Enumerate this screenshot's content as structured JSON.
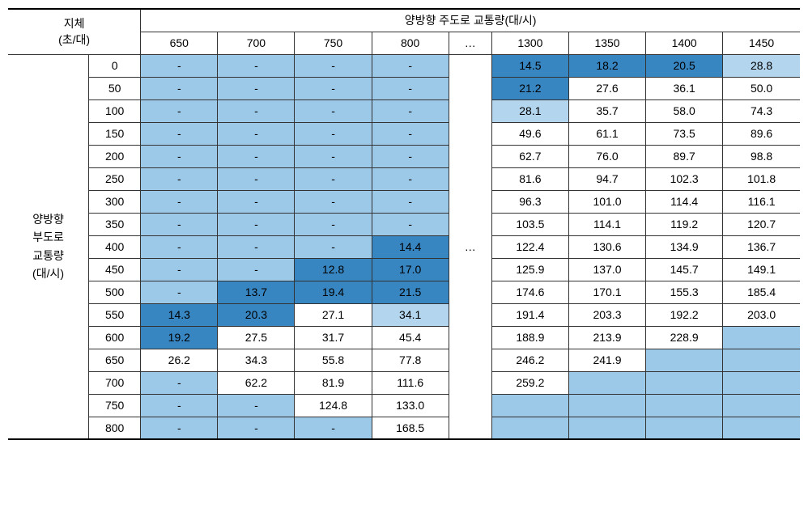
{
  "table": {
    "header": {
      "corner_line1": "지체",
      "corner_line2": "(초/대)",
      "main_col_header": "양방향 주도로 교통량(대/시)",
      "ellipsis": "…",
      "col_headers": [
        "650",
        "700",
        "750",
        "800",
        "1300",
        "1350",
        "1400",
        "1450"
      ]
    },
    "row_header": {
      "line1": "양방향",
      "line2": "부도로",
      "line3": "교통량",
      "line4": "(대/시)"
    },
    "row_labels": [
      "0",
      "50",
      "100",
      "150",
      "200",
      "250",
      "300",
      "350",
      "400",
      "450",
      "500",
      "550",
      "600",
      "650",
      "700",
      "750",
      "800"
    ],
    "colors": {
      "white": "#ffffff",
      "lightest": "#b3d5ee",
      "light": "#9cc9e8",
      "medium": "#7fb9df",
      "dark": "#5ba3d4",
      "darkest": "#3785c1",
      "empty": "#9cc9e8"
    },
    "cells": [
      [
        {
          "v": "-",
          "c": "#9cc9e8"
        },
        {
          "v": "-",
          "c": "#9cc9e8"
        },
        {
          "v": "-",
          "c": "#9cc9e8"
        },
        {
          "v": "-",
          "c": "#9cc9e8"
        },
        {
          "v": "14.5",
          "c": "#3785c1"
        },
        {
          "v": "18.2",
          "c": "#3785c1"
        },
        {
          "v": "20.5",
          "c": "#3785c1"
        },
        {
          "v": "28.8",
          "c": "#b3d5ee"
        }
      ],
      [
        {
          "v": "-",
          "c": "#9cc9e8"
        },
        {
          "v": "-",
          "c": "#9cc9e8"
        },
        {
          "v": "-",
          "c": "#9cc9e8"
        },
        {
          "v": "-",
          "c": "#9cc9e8"
        },
        {
          "v": "21.2",
          "c": "#3785c1"
        },
        {
          "v": "27.6",
          "c": "#ffffff"
        },
        {
          "v": "36.1",
          "c": "#ffffff"
        },
        {
          "v": "50.0",
          "c": "#ffffff"
        }
      ],
      [
        {
          "v": "-",
          "c": "#9cc9e8"
        },
        {
          "v": "-",
          "c": "#9cc9e8"
        },
        {
          "v": "-",
          "c": "#9cc9e8"
        },
        {
          "v": "-",
          "c": "#9cc9e8"
        },
        {
          "v": "28.1",
          "c": "#b3d5ee"
        },
        {
          "v": "35.7",
          "c": "#ffffff"
        },
        {
          "v": "58.0",
          "c": "#ffffff"
        },
        {
          "v": "74.3",
          "c": "#ffffff"
        }
      ],
      [
        {
          "v": "-",
          "c": "#9cc9e8"
        },
        {
          "v": "-",
          "c": "#9cc9e8"
        },
        {
          "v": "-",
          "c": "#9cc9e8"
        },
        {
          "v": "-",
          "c": "#9cc9e8"
        },
        {
          "v": "49.6",
          "c": "#ffffff"
        },
        {
          "v": "61.1",
          "c": "#ffffff"
        },
        {
          "v": "73.5",
          "c": "#ffffff"
        },
        {
          "v": "89.6",
          "c": "#ffffff"
        }
      ],
      [
        {
          "v": "-",
          "c": "#9cc9e8"
        },
        {
          "v": "-",
          "c": "#9cc9e8"
        },
        {
          "v": "-",
          "c": "#9cc9e8"
        },
        {
          "v": "-",
          "c": "#9cc9e8"
        },
        {
          "v": "62.7",
          "c": "#ffffff"
        },
        {
          "v": "76.0",
          "c": "#ffffff"
        },
        {
          "v": "89.7",
          "c": "#ffffff"
        },
        {
          "v": "98.8",
          "c": "#ffffff"
        }
      ],
      [
        {
          "v": "-",
          "c": "#9cc9e8"
        },
        {
          "v": "-",
          "c": "#9cc9e8"
        },
        {
          "v": "-",
          "c": "#9cc9e8"
        },
        {
          "v": "-",
          "c": "#9cc9e8"
        },
        {
          "v": "81.6",
          "c": "#ffffff"
        },
        {
          "v": "94.7",
          "c": "#ffffff"
        },
        {
          "v": "102.3",
          "c": "#ffffff"
        },
        {
          "v": "101.8",
          "c": "#ffffff"
        }
      ],
      [
        {
          "v": "-",
          "c": "#9cc9e8"
        },
        {
          "v": "-",
          "c": "#9cc9e8"
        },
        {
          "v": "-",
          "c": "#9cc9e8"
        },
        {
          "v": "-",
          "c": "#9cc9e8"
        },
        {
          "v": "96.3",
          "c": "#ffffff"
        },
        {
          "v": "101.0",
          "c": "#ffffff"
        },
        {
          "v": "114.4",
          "c": "#ffffff"
        },
        {
          "v": "116.1",
          "c": "#ffffff"
        }
      ],
      [
        {
          "v": "-",
          "c": "#9cc9e8"
        },
        {
          "v": "-",
          "c": "#9cc9e8"
        },
        {
          "v": "-",
          "c": "#9cc9e8"
        },
        {
          "v": "-",
          "c": "#9cc9e8"
        },
        {
          "v": "103.5",
          "c": "#ffffff"
        },
        {
          "v": "114.1",
          "c": "#ffffff"
        },
        {
          "v": "119.2",
          "c": "#ffffff"
        },
        {
          "v": "120.7",
          "c": "#ffffff"
        }
      ],
      [
        {
          "v": "-",
          "c": "#9cc9e8"
        },
        {
          "v": "-",
          "c": "#9cc9e8"
        },
        {
          "v": "-",
          "c": "#9cc9e8"
        },
        {
          "v": "14.4",
          "c": "#3785c1"
        },
        {
          "v": "122.4",
          "c": "#ffffff"
        },
        {
          "v": "130.6",
          "c": "#ffffff"
        },
        {
          "v": "134.9",
          "c": "#ffffff"
        },
        {
          "v": "136.7",
          "c": "#ffffff"
        }
      ],
      [
        {
          "v": "-",
          "c": "#9cc9e8"
        },
        {
          "v": "-",
          "c": "#9cc9e8"
        },
        {
          "v": "12.8",
          "c": "#3785c1"
        },
        {
          "v": "17.0",
          "c": "#3785c1"
        },
        {
          "v": "125.9",
          "c": "#ffffff"
        },
        {
          "v": "137.0",
          "c": "#ffffff"
        },
        {
          "v": "145.7",
          "c": "#ffffff"
        },
        {
          "v": "149.1",
          "c": "#ffffff"
        }
      ],
      [
        {
          "v": "-",
          "c": "#9cc9e8"
        },
        {
          "v": "13.7",
          "c": "#3785c1"
        },
        {
          "v": "19.4",
          "c": "#3785c1"
        },
        {
          "v": "21.5",
          "c": "#3785c1"
        },
        {
          "v": "174.6",
          "c": "#ffffff"
        },
        {
          "v": "170.1",
          "c": "#ffffff"
        },
        {
          "v": "155.3",
          "c": "#ffffff"
        },
        {
          "v": "185.4",
          "c": "#ffffff"
        }
      ],
      [
        {
          "v": "14.3",
          "c": "#3785c1"
        },
        {
          "v": "20.3",
          "c": "#3785c1"
        },
        {
          "v": "27.1",
          "c": "#ffffff"
        },
        {
          "v": "34.1",
          "c": "#b3d5ee"
        },
        {
          "v": "191.4",
          "c": "#ffffff"
        },
        {
          "v": "203.3",
          "c": "#ffffff"
        },
        {
          "v": "192.2",
          "c": "#ffffff"
        },
        {
          "v": "203.0",
          "c": "#ffffff"
        }
      ],
      [
        {
          "v": "19.2",
          "c": "#3785c1"
        },
        {
          "v": "27.5",
          "c": "#ffffff"
        },
        {
          "v": "31.7",
          "c": "#ffffff"
        },
        {
          "v": "45.4",
          "c": "#ffffff"
        },
        {
          "v": "188.9",
          "c": "#ffffff"
        },
        {
          "v": "213.9",
          "c": "#ffffff"
        },
        {
          "v": "228.9",
          "c": "#ffffff"
        },
        {
          "v": "",
          "c": "#9cc9e8"
        }
      ],
      [
        {
          "v": "26.2",
          "c": "#ffffff"
        },
        {
          "v": "34.3",
          "c": "#ffffff"
        },
        {
          "v": "55.8",
          "c": "#ffffff"
        },
        {
          "v": "77.8",
          "c": "#ffffff"
        },
        {
          "v": "246.2",
          "c": "#ffffff"
        },
        {
          "v": "241.9",
          "c": "#ffffff"
        },
        {
          "v": "",
          "c": "#9cc9e8"
        },
        {
          "v": "",
          "c": "#9cc9e8"
        }
      ],
      [
        {
          "v": "-",
          "c": "#9cc9e8"
        },
        {
          "v": "62.2",
          "c": "#ffffff"
        },
        {
          "v": "81.9",
          "c": "#ffffff"
        },
        {
          "v": "111.6",
          "c": "#ffffff"
        },
        {
          "v": "259.2",
          "c": "#ffffff"
        },
        {
          "v": "",
          "c": "#9cc9e8"
        },
        {
          "v": "",
          "c": "#9cc9e8"
        },
        {
          "v": "",
          "c": "#9cc9e8"
        }
      ],
      [
        {
          "v": "-",
          "c": "#9cc9e8"
        },
        {
          "v": "-",
          "c": "#9cc9e8"
        },
        {
          "v": "124.8",
          "c": "#ffffff"
        },
        {
          "v": "133.0",
          "c": "#ffffff"
        },
        {
          "v": "",
          "c": "#9cc9e8"
        },
        {
          "v": "",
          "c": "#9cc9e8"
        },
        {
          "v": "",
          "c": "#9cc9e8"
        },
        {
          "v": "",
          "c": "#9cc9e8"
        }
      ],
      [
        {
          "v": "-",
          "c": "#9cc9e8"
        },
        {
          "v": "-",
          "c": "#9cc9e8"
        },
        {
          "v": "-",
          "c": "#9cc9e8"
        },
        {
          "v": "168.5",
          "c": "#ffffff"
        },
        {
          "v": "",
          "c": "#9cc9e8"
        },
        {
          "v": "",
          "c": "#9cc9e8"
        },
        {
          "v": "",
          "c": "#9cc9e8"
        },
        {
          "v": "",
          "c": "#9cc9e8"
        }
      ]
    ]
  }
}
